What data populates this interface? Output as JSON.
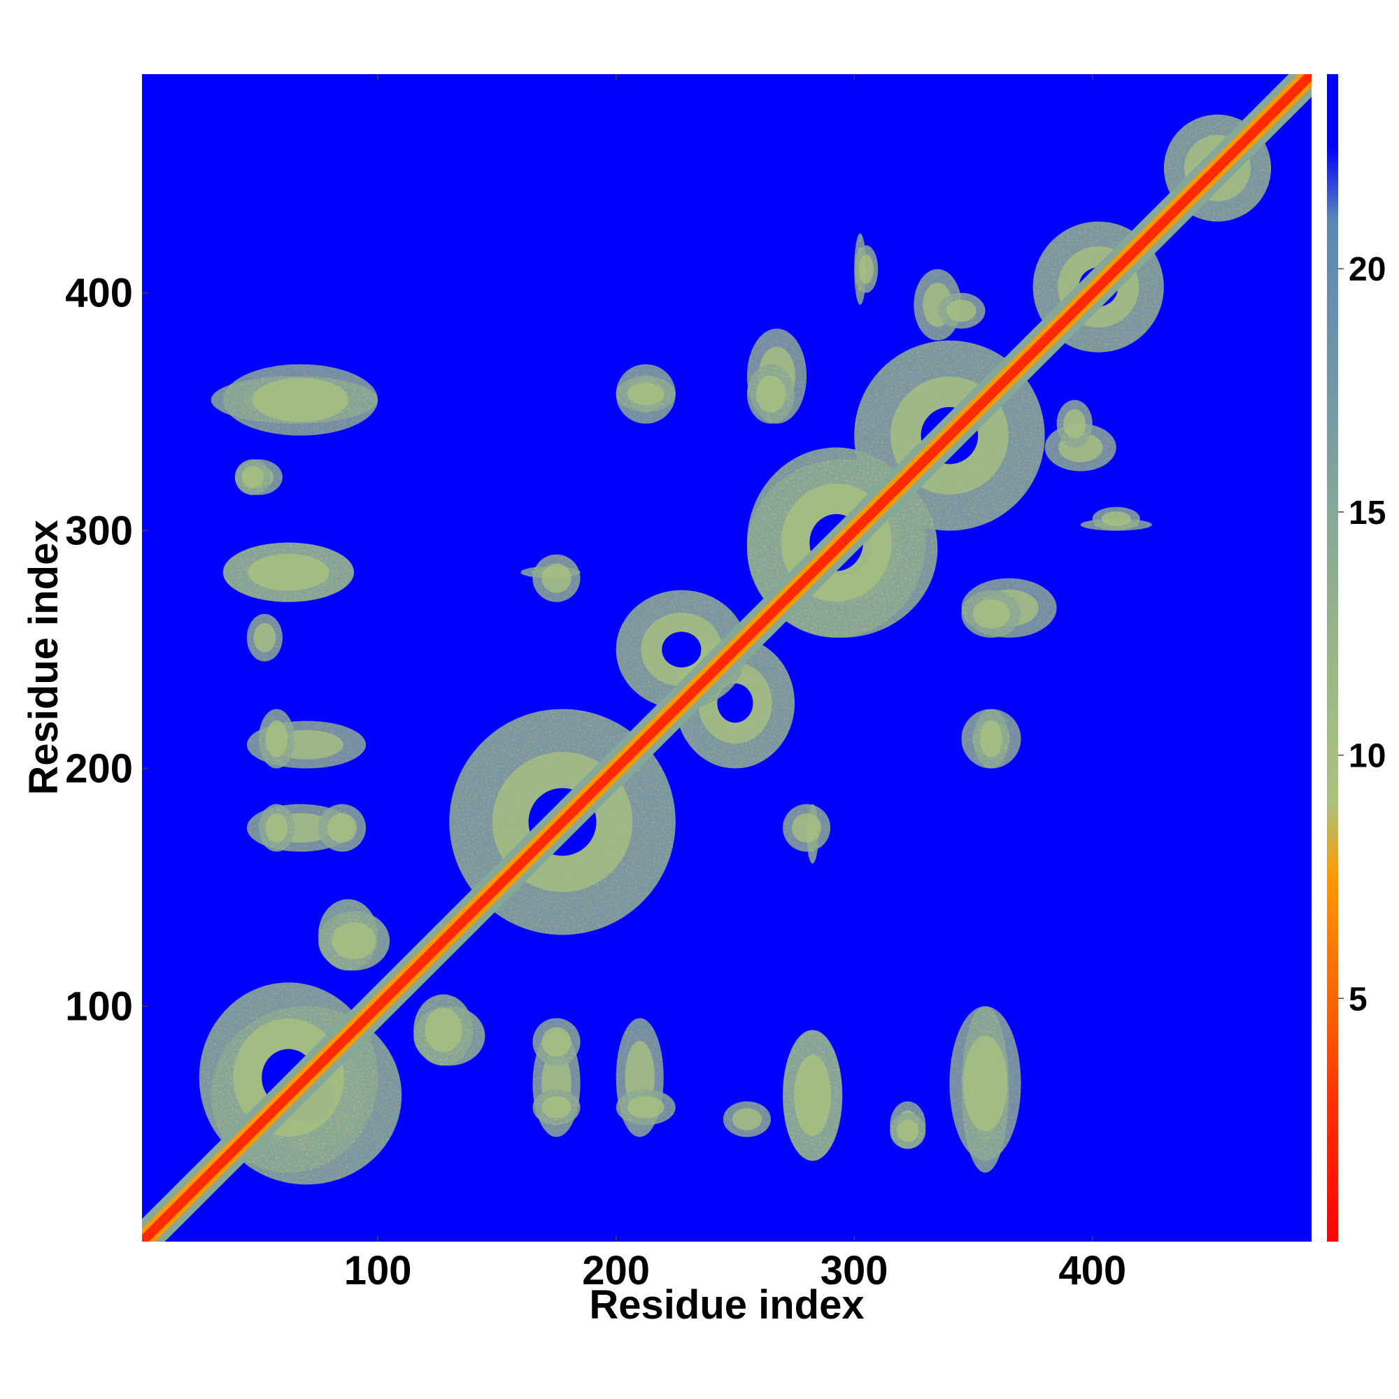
{
  "chart_data": {
    "type": "heatmap",
    "title": "",
    "xlabel": "Residue index",
    "ylabel": "Residue index",
    "xlim": [
      1,
      492
    ],
    "ylim": [
      1,
      492
    ],
    "x_ticks": [
      100,
      200,
      300,
      400
    ],
    "y_ticks": [
      100,
      200,
      300,
      400
    ],
    "x_tick_labels": [
      "100",
      "200",
      "300",
      "400"
    ],
    "y_tick_labels": [
      "100",
      "200",
      "300",
      "400"
    ],
    "colorbar": {
      "range": [
        0,
        24
      ],
      "ticks": [
        5,
        10,
        15,
        20
      ],
      "tick_labels": [
        "5",
        "10",
        "15",
        "20"
      ],
      "stops": [
        {
          "value": 0,
          "color": "#ff0000"
        },
        {
          "value": 1.5,
          "color": "#ff1a00"
        },
        {
          "value": 3,
          "color": "#ff3300"
        },
        {
          "value": 4.5,
          "color": "#ff5a00"
        },
        {
          "value": 6,
          "color": "#ff7800"
        },
        {
          "value": 7.5,
          "color": "#ff9900"
        },
        {
          "value": 9,
          "color": "#aac37d"
        },
        {
          "value": 12,
          "color": "#9ab687"
        },
        {
          "value": 15,
          "color": "#86a896"
        },
        {
          "value": 18,
          "color": "#6e95a8"
        },
        {
          "value": 21,
          "color": "#5a88b5"
        },
        {
          "value": 22.5,
          "color": "#0000ff"
        },
        {
          "value": 24,
          "color": "#0000ff"
        }
      ]
    },
    "background_color": "#0000ff",
    "diagonal_color": "#ff2a00",
    "contact_regions": [
      {
        "x": [
          30,
          110
        ],
        "y": [
          25,
          100
        ],
        "kind": "block"
      },
      {
        "x": [
          75,
          100
        ],
        "y": [
          115,
          145
        ],
        "kind": "arm"
      },
      {
        "x": [
          115,
          140
        ],
        "y": [
          75,
          105
        ],
        "kind": "arm"
      },
      {
        "x": [
          130,
          225
        ],
        "y": [
          130,
          225
        ],
        "kind": "block"
      },
      {
        "x": [
          225,
          275
        ],
        "y": [
          200,
          255
        ],
        "kind": "block"
      },
      {
        "x": [
          255,
          335
        ],
        "y": [
          255,
          330
        ],
        "kind": "block"
      },
      {
        "x": [
          300,
          380
        ],
        "y": [
          300,
          380
        ],
        "kind": "block"
      },
      {
        "x": [
          375,
          430
        ],
        "y": [
          375,
          430
        ],
        "kind": "block"
      },
      {
        "x": [
          430,
          475
        ],
        "y": [
          430,
          475
        ],
        "kind": "band"
      },
      {
        "x": [
          30,
          100
        ],
        "y": [
          345,
          365
        ],
        "kind": "island"
      },
      {
        "x": [
          40,
          60
        ],
        "y": [
          315,
          330
        ],
        "kind": "island"
      },
      {
        "x": [
          35,
          90
        ],
        "y": [
          270,
          295
        ],
        "kind": "island"
      },
      {
        "x": [
          45,
          60
        ],
        "y": [
          245,
          265
        ],
        "kind": "island"
      },
      {
        "x": [
          45,
          95
        ],
        "y": [
          200,
          220
        ],
        "kind": "island"
      },
      {
        "x": [
          45,
          90
        ],
        "y": [
          165,
          185
        ],
        "kind": "island"
      },
      {
        "x": [
          165,
          185
        ],
        "y": [
          75,
          95
        ],
        "kind": "island"
      },
      {
        "x": [
          165,
          185
        ],
        "y": [
          50,
          65
        ],
        "kind": "island"
      },
      {
        "x": [
          200,
          225
        ],
        "y": [
          50,
          65
        ],
        "kind": "island"
      },
      {
        "x": [
          270,
          295
        ],
        "y": [
          35,
          90
        ],
        "kind": "island"
      },
      {
        "x": [
          315,
          330
        ],
        "y": [
          40,
          55
        ],
        "kind": "island"
      },
      {
        "x": [
          340,
          370
        ],
        "y": [
          35,
          100
        ],
        "kind": "island"
      },
      {
        "x": [
          345,
          370
        ],
        "y": [
          200,
          225
        ],
        "kind": "island"
      },
      {
        "x": [
          345,
          385
        ],
        "y": [
          255,
          280
        ],
        "kind": "island"
      },
      {
        "x": [
          380,
          410
        ],
        "y": [
          325,
          345
        ],
        "kind": "island"
      },
      {
        "x": [
          395,
          425
        ],
        "y": [
          300,
          305
        ],
        "kind": "island"
      },
      {
        "x": [
          300,
          310
        ],
        "y": [
          400,
          420
        ],
        "kind": "island"
      },
      {
        "x": [
          335,
          355
        ],
        "y": [
          385,
          400
        ],
        "kind": "island"
      },
      {
        "x": [
          200,
          225
        ],
        "y": [
          350,
          365
        ],
        "kind": "island"
      },
      {
        "x": [
          255,
          275
        ],
        "y": [
          345,
          370
        ],
        "kind": "island"
      },
      {
        "x": [
          160,
          185
        ],
        "y": [
          280,
          285
        ],
        "kind": "island"
      },
      {
        "x": [
          270,
          290
        ],
        "y": [
          165,
          185
        ],
        "kind": "island"
      }
    ]
  }
}
